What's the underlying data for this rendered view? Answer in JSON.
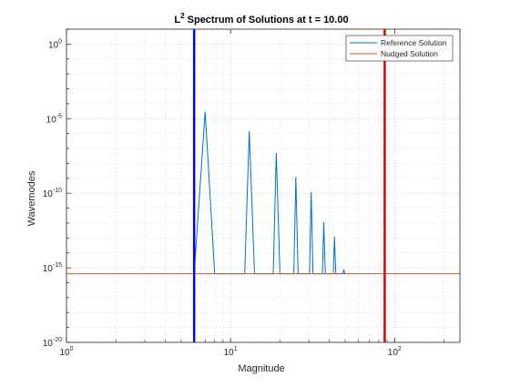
{
  "colors": {
    "figure_bg": "#ffffff",
    "axes_bg": "#ffffff",
    "grid": "#b0b0b0",
    "text": "#262626",
    "blue_line": "#0000ff",
    "red_line": "#e00000"
  },
  "chart_data": {
    "type": "line",
    "title": {
      "prefix": "L",
      "superscript": "2",
      "rest": " Spectrum of Solutions at t = 10.00"
    },
    "xlabel": "Magnitude",
    "ylabel": "Wavemodes",
    "xscale": "log",
    "yscale": "log",
    "xlim": [
      1,
      250
    ],
    "ylim": [
      1e-20,
      10
    ],
    "grid": true,
    "minor_grid": true,
    "legend_position": "top-right",
    "x_ticks": [
      {
        "value": 1,
        "base": "10",
        "exp": "0"
      },
      {
        "value": 10,
        "base": "10",
        "exp": "1"
      },
      {
        "value": 100,
        "base": "10",
        "exp": "2"
      }
    ],
    "y_ticks": [
      {
        "value": 1,
        "base": "10",
        "exp": "0"
      },
      {
        "value": 1e-05,
        "base": "10",
        "exp": "-5"
      },
      {
        "value": 1e-10,
        "base": "10",
        "exp": "-10"
      },
      {
        "value": 1e-15,
        "base": "10",
        "exp": "-15"
      },
      {
        "value": 1e-20,
        "base": "10",
        "exp": "-20"
      }
    ],
    "series": [
      {
        "name": "Reference Solution",
        "color": "#0072bd",
        "points": [
          [
            6,
            4e-16
          ],
          [
            7,
            3e-05
          ],
          [
            8,
            4e-16
          ],
          [
            12.2,
            4e-16
          ],
          [
            13,
            1.5e-06
          ],
          [
            14,
            4e-16
          ],
          [
            18.2,
            4e-16
          ],
          [
            19,
            5e-08
          ],
          [
            20,
            4e-16
          ],
          [
            24.3,
            4e-16
          ],
          [
            25,
            1.2e-09
          ],
          [
            25.8,
            4e-16
          ],
          [
            30.3,
            4e-16
          ],
          [
            31,
            1.2e-10
          ],
          [
            31.8,
            4e-16
          ],
          [
            36.3,
            4e-16
          ],
          [
            37,
            1.2e-12
          ],
          [
            37.8,
            4e-16
          ],
          [
            42.3,
            4e-16
          ],
          [
            43,
            1.2e-13
          ],
          [
            43.8,
            4e-16
          ],
          [
            48.3,
            4e-16
          ],
          [
            49,
            7e-16
          ],
          [
            49.8,
            4e-16
          ]
        ]
      },
      {
        "name": "Nudged Solution",
        "color": "#d95319",
        "points": [
          [
            1,
            4e-16
          ],
          [
            250,
            4e-16
          ]
        ]
      }
    ],
    "vertical_lines": [
      {
        "x": 6,
        "color": "#0000ff"
      },
      {
        "x": 87,
        "color": "#e00000"
      }
    ]
  }
}
